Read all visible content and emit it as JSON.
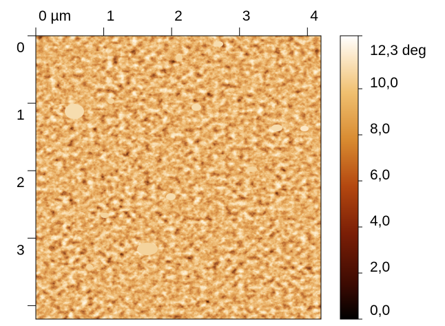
{
  "image": {
    "type": "afm-phase-map",
    "x_axis": {
      "ticks": [
        {
          "value": 0,
          "label": "0 µm"
        },
        {
          "value": 1,
          "label": "1"
        },
        {
          "value": 2,
          "label": "2"
        },
        {
          "value": 3,
          "label": "3"
        },
        {
          "value": 4,
          "label": "4"
        }
      ],
      "range": [
        0,
        4.2
      ]
    },
    "y_axis": {
      "ticks": [
        {
          "value": 0,
          "label": "0"
        },
        {
          "value": 1,
          "label": "1"
        },
        {
          "value": 2,
          "label": "2"
        },
        {
          "value": 3,
          "label": "3"
        },
        {
          "value": 4,
          "label": ""
        }
      ],
      "range": [
        0,
        4.2
      ]
    },
    "colorbar": {
      "range": [
        0,
        12.3
      ],
      "unit": "deg",
      "labels": [
        {
          "value": 12.3,
          "label": "12,3 deg"
        },
        {
          "value": 10.0,
          "label": "10,0"
        },
        {
          "value": 8.0,
          "label": "8,0"
        },
        {
          "value": 6.0,
          "label": "6,0"
        },
        {
          "value": 4.0,
          "label": "4,0"
        },
        {
          "value": 2.0,
          "label": "2,0"
        },
        {
          "value": 0.0,
          "label": "0,0"
        }
      ],
      "colors": [
        "#000000",
        "#3b0a02",
        "#7a1e06",
        "#b44810",
        "#d88a30",
        "#f0c070",
        "#fbe6c4",
        "#ffffff"
      ]
    }
  }
}
